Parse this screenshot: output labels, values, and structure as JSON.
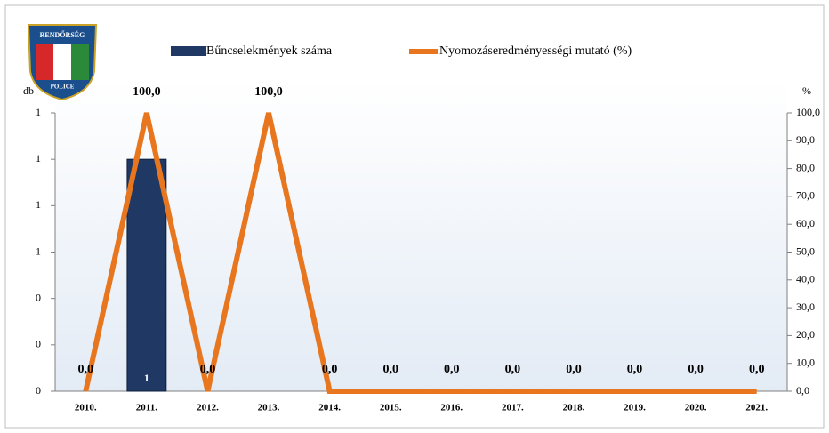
{
  "logo_text": {
    "top": "RENDŐRSÉG",
    "bottom": "POLICE"
  },
  "chart_data": {
    "type": "bar_line",
    "y_label": "db",
    "y2_label": "%",
    "categories": [
      "2010.",
      "2011.",
      "2012.",
      "2013.",
      "2014.",
      "2015.",
      "2016.",
      "2017.",
      "2018.",
      "2019.",
      "2020.",
      "2021."
    ],
    "series": [
      {
        "name": "Bűncselekmények száma",
        "color": "#1f3864",
        "type": "bar",
        "values": [
          0,
          1,
          0,
          0,
          0,
          0,
          0,
          0,
          0,
          0,
          0,
          0
        ],
        "value_labels": [
          null,
          "1",
          null,
          null,
          null,
          null,
          null,
          null,
          null,
          null,
          null,
          null
        ]
      },
      {
        "name": "Nyomozáseredményességi mutató (%)",
        "color": "#e8761e",
        "type": "line",
        "axis": "y2",
        "values": [
          0,
          100,
          0,
          100,
          0,
          0,
          0,
          0,
          0,
          0,
          0,
          0
        ],
        "value_labels": [
          "0,0",
          "100,0",
          "0,0",
          "100,0",
          "0,0",
          "0,0",
          "0,0",
          "0,0",
          "0,0",
          "0,0",
          "0,0",
          "0,0"
        ]
      }
    ],
    "ylim": [
      0,
      1.2
    ],
    "yticks": [
      {
        "value": 0,
        "label": "0"
      },
      {
        "value": 0.2,
        "label": "0"
      },
      {
        "value": 0.4,
        "label": "0"
      },
      {
        "value": 0.6,
        "label": "1"
      },
      {
        "value": 0.8,
        "label": "1"
      },
      {
        "value": 1.0,
        "label": "1"
      },
      {
        "value": 1.2,
        "label": "1"
      }
    ],
    "y2lim": [
      0,
      100
    ],
    "y2ticks": [
      {
        "value": 0,
        "label": "0,0"
      },
      {
        "value": 10,
        "label": "10,0"
      },
      {
        "value": 20,
        "label": "20,0"
      },
      {
        "value": 30,
        "label": "30,0"
      },
      {
        "value": 40,
        "label": "40,0"
      },
      {
        "value": 50,
        "label": "50,0"
      },
      {
        "value": 60,
        "label": "60,0"
      },
      {
        "value": 70,
        "label": "70,0"
      },
      {
        "value": 80,
        "label": "80,0"
      },
      {
        "value": 90,
        "label": "90,0"
      },
      {
        "value": 100,
        "label": "100,0"
      }
    ]
  }
}
